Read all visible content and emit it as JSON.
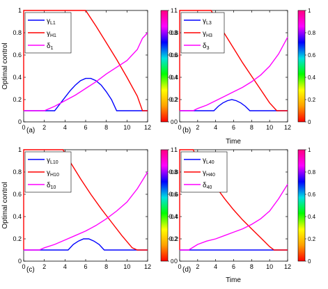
{
  "chart_data": [
    {
      "type": "line",
      "panel_label": "(a)",
      "xlabel": "",
      "ylabel": "Optimal control",
      "xlim": [
        0,
        12
      ],
      "ylim": [
        0,
        1
      ],
      "xticks": [
        "0",
        "2",
        "4",
        "6",
        "8",
        "10",
        "12"
      ],
      "yticks": [
        "0",
        "0.2",
        "0.4",
        "0.6",
        "0.8",
        "1"
      ],
      "legend_position": "top-left",
      "series": [
        {
          "name": "γL1",
          "color": "#0000ff",
          "x": [
            0,
            3,
            3.5,
            4,
            4.5,
            5,
            5.5,
            6,
            6.5,
            7,
            7.5,
            8,
            8.5,
            9,
            12
          ],
          "y": [
            0.1,
            0.1,
            0.16,
            0.22,
            0.28,
            0.33,
            0.37,
            0.39,
            0.39,
            0.37,
            0.33,
            0.27,
            0.2,
            0.1,
            0.1
          ]
        },
        {
          "name": "γH1",
          "color": "#ff0000",
          "x": [
            0,
            0,
            6,
            7,
            8,
            9,
            10,
            11,
            11.5,
            12
          ],
          "y": [
            0.1,
            1,
            1,
            0.86,
            0.71,
            0.56,
            0.4,
            0.23,
            0.1,
            0.1
          ]
        },
        {
          "name": "δ1",
          "color": "#ff00ff",
          "x": [
            0,
            2,
            3,
            4,
            5,
            6,
            7,
            8,
            9,
            10,
            11,
            11.5,
            12
          ],
          "y": [
            0.1,
            0.1,
            0.14,
            0.19,
            0.24,
            0.3,
            0.36,
            0.43,
            0.49,
            0.55,
            0.65,
            0.75,
            0.8
          ]
        }
      ]
    },
    {
      "type": "line",
      "panel_label": "(b)",
      "xlabel": "Time",
      "ylabel": "",
      "xlim": [
        0,
        12
      ],
      "ylim": [
        0,
        1
      ],
      "xticks": [
        "0",
        "2",
        "4",
        "6",
        "8",
        "10",
        "12"
      ],
      "yticks": [
        "0",
        "0.2",
        "0.4",
        "0.6",
        "0.8",
        "1"
      ],
      "legend_position": "top-left",
      "series": [
        {
          "name": "γL3",
          "color": "#0000ff",
          "x": [
            0,
            3.8,
            4.3,
            4.8,
            5.3,
            5.8,
            6.3,
            6.8,
            7.3,
            7.8,
            12
          ],
          "y": [
            0.1,
            0.1,
            0.14,
            0.17,
            0.19,
            0.2,
            0.19,
            0.17,
            0.14,
            0.1,
            0.1
          ]
        },
        {
          "name": "γH3",
          "color": "#ff0000",
          "x": [
            0,
            0,
            3.5,
            4,
            5,
            6,
            7,
            8,
            9,
            10,
            10.8,
            12
          ],
          "y": [
            0.1,
            1,
            1,
            0.92,
            0.79,
            0.66,
            0.53,
            0.41,
            0.29,
            0.17,
            0.1,
            0.1
          ]
        },
        {
          "name": "δ3",
          "color": "#ff00ff",
          "x": [
            0,
            1.5,
            2,
            3,
            4,
            5,
            6,
            7,
            8,
            9,
            10,
            11,
            12
          ],
          "y": [
            0.1,
            0.1,
            0.12,
            0.15,
            0.19,
            0.23,
            0.27,
            0.31,
            0.36,
            0.42,
            0.5,
            0.61,
            0.76
          ]
        }
      ]
    },
    {
      "type": "line",
      "panel_label": "(c)",
      "xlabel": "",
      "ylabel": "Optimal control",
      "xlim": [
        0,
        12
      ],
      "ylim": [
        0,
        1
      ],
      "xticks": [
        "0",
        "2",
        "4",
        "6",
        "8",
        "10",
        "12"
      ],
      "yticks": [
        "0",
        "0.2",
        "0.4",
        "0.6",
        "0.8",
        "1"
      ],
      "legend_position": "top-left",
      "series": [
        {
          "name": "γL10",
          "color": "#0000ff",
          "x": [
            0,
            4.3,
            4.8,
            5.3,
            5.8,
            6.3,
            6.8,
            7.3,
            7.8,
            12
          ],
          "y": [
            0.1,
            0.1,
            0.15,
            0.18,
            0.2,
            0.2,
            0.18,
            0.15,
            0.1,
            0.1
          ]
        },
        {
          "name": "γH10",
          "color": "#ff0000",
          "x": [
            0,
            0,
            3.8,
            4.5,
            5.5,
            6.5,
            7.5,
            8.5,
            9.5,
            10.5,
            11,
            12
          ],
          "y": [
            0.1,
            1,
            1,
            0.89,
            0.74,
            0.6,
            0.47,
            0.35,
            0.23,
            0.12,
            0.1,
            0.1
          ]
        },
        {
          "name": "δ10",
          "color": "#ff00ff",
          "x": [
            0,
            1.5,
            2,
            3,
            4,
            5,
            6,
            7,
            8,
            9,
            10,
            11,
            12
          ],
          "y": [
            0.1,
            0.1,
            0.12,
            0.15,
            0.19,
            0.23,
            0.27,
            0.32,
            0.38,
            0.45,
            0.53,
            0.65,
            0.8
          ]
        }
      ]
    },
    {
      "type": "line",
      "panel_label": "(d)",
      "xlabel": "Time",
      "ylabel": "",
      "xlim": [
        0,
        12
      ],
      "ylim": [
        0,
        1
      ],
      "xticks": [
        "0",
        "2",
        "4",
        "6",
        "8",
        "10",
        "12"
      ],
      "yticks": [
        "0",
        "0.2",
        "0.4",
        "0.6",
        "0.8",
        "1"
      ],
      "legend_position": "top-left",
      "series": [
        {
          "name": "γL40",
          "color": "#0000ff",
          "x": [
            0,
            12
          ],
          "y": [
            0.1,
            0.1
          ]
        },
        {
          "name": "γH40",
          "color": "#ff0000",
          "x": [
            0,
            0,
            1.5,
            2,
            3,
            4,
            5,
            6,
            7,
            8,
            9,
            10,
            10.5,
            12
          ],
          "y": [
            0.1,
            1,
            1,
            0.91,
            0.79,
            0.67,
            0.56,
            0.46,
            0.37,
            0.29,
            0.21,
            0.13,
            0.1,
            0.1
          ]
        },
        {
          "name": "δ40",
          "color": "#ff00ff",
          "x": [
            0,
            1,
            2,
            3,
            4,
            5,
            6,
            7,
            8,
            9,
            10,
            11,
            12
          ],
          "y": [
            0.1,
            0.1,
            0.15,
            0.18,
            0.2,
            0.23,
            0.26,
            0.29,
            0.33,
            0.38,
            0.45,
            0.56,
            0.69
          ]
        }
      ]
    }
  ],
  "colorbar": {
    "ticks": [
      "0",
      "0.2",
      "0.4",
      "0.6",
      "0.8",
      "1"
    ],
    "colors": [
      "#ff0000",
      "#ffa000",
      "#ffff00",
      "#00ff00",
      "#00e0e0",
      "#0000ff",
      "#ff00ff",
      "#ff0080"
    ]
  }
}
